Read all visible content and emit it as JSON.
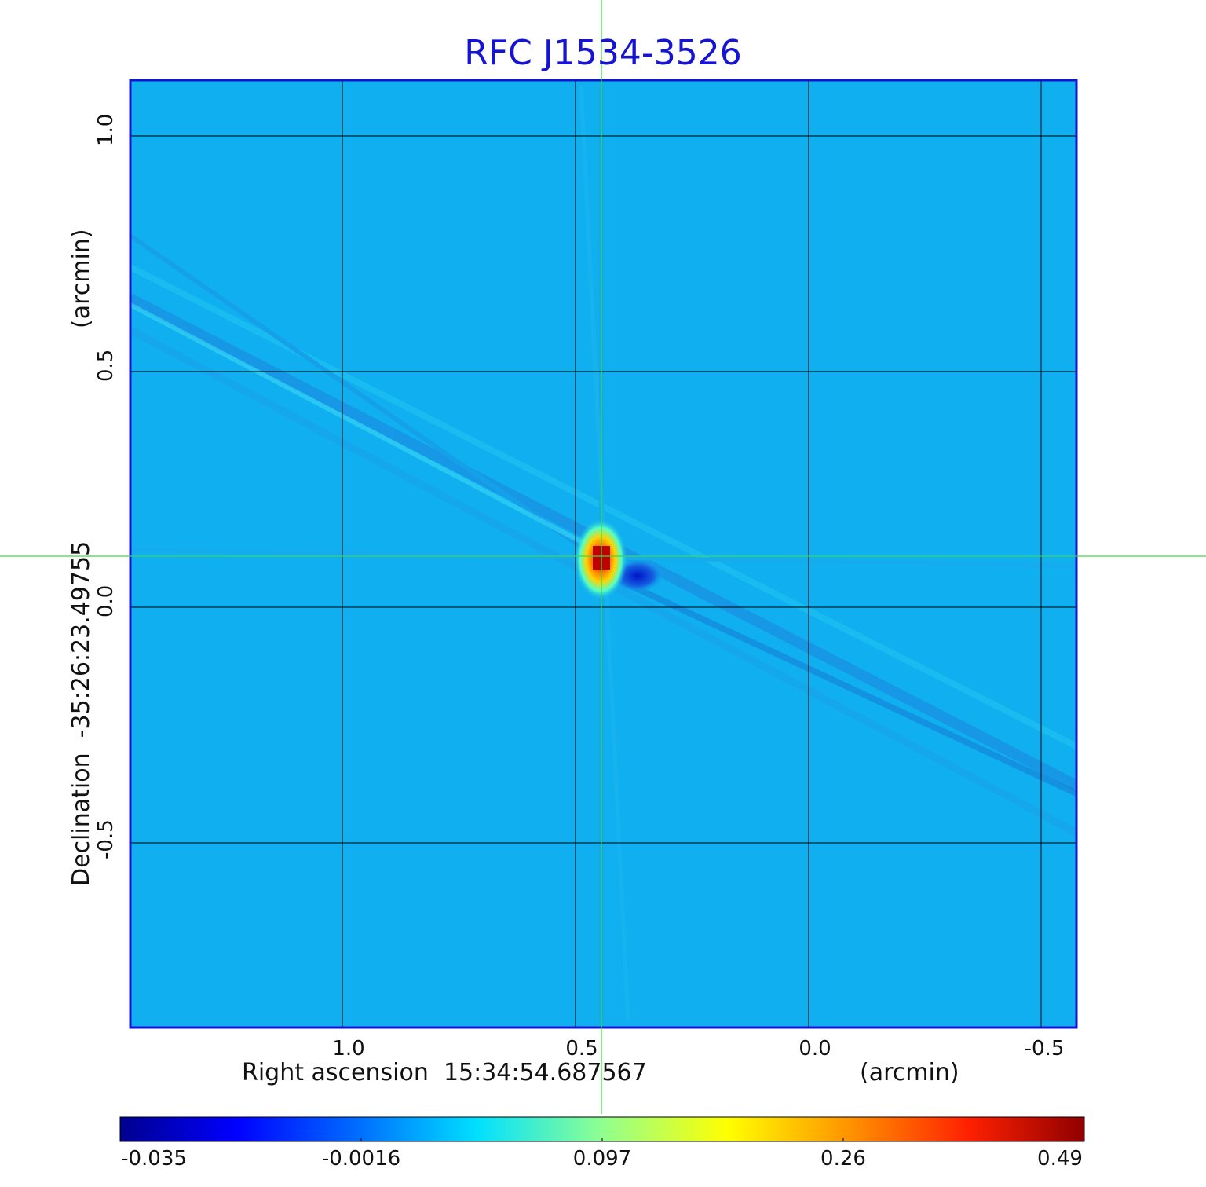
{
  "title": "RFC J1534-3526",
  "x_axis": {
    "label": "Right ascension",
    "center": "15:34:54.687567",
    "unit": "(arcmin)",
    "ticks": [
      "1.0",
      "0.5",
      "0.0",
      "-0.5"
    ]
  },
  "y_axis": {
    "label": "Declination",
    "center": "-35:26:23.49755",
    "unit": "(arcmin)",
    "ticks": [
      "1.0",
      "0.5",
      "0.0",
      "-0.5"
    ]
  },
  "colorbar": {
    "colormap": "jet",
    "ticks": [
      "-0.035",
      "-0.0016",
      "0.097",
      "0.26",
      "0.49"
    ]
  },
  "colors": {
    "title": "#1414d2",
    "frame": "#1414d2",
    "crosshair": "#39d94a",
    "grid": "#000000",
    "background_field": "#10b0f0"
  }
}
